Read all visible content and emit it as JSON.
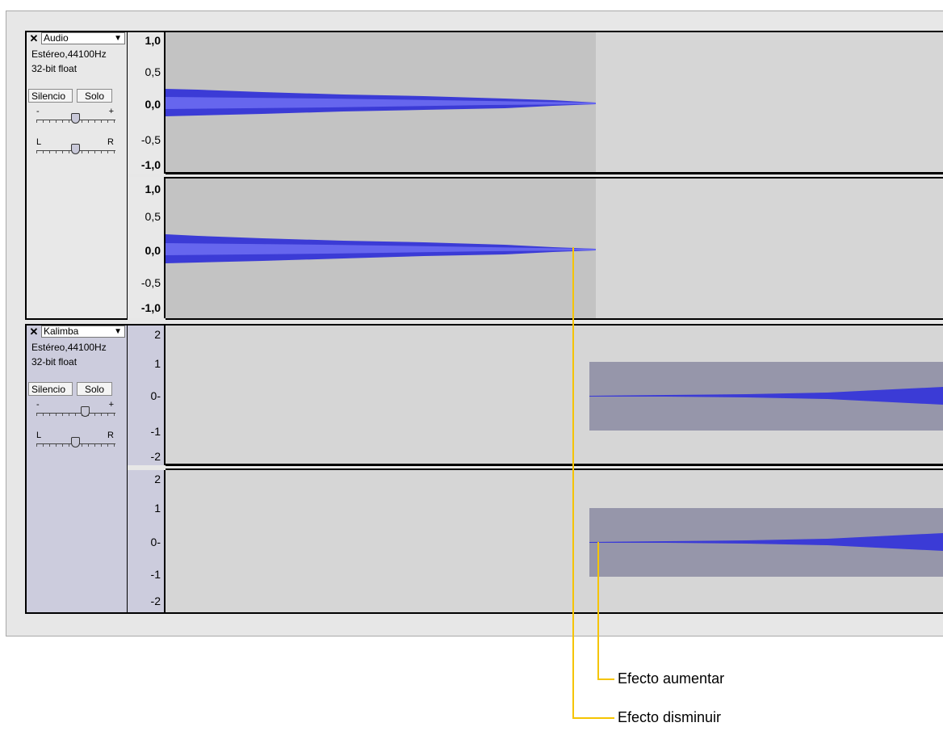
{
  "tracks": [
    {
      "name": "Audio",
      "info_line1": "Estéreo,44100Hz",
      "info_line2": "32-bit float",
      "mute_label": "Silencio",
      "solo_label": "Solo",
      "gain_minus": "-",
      "gain_plus": "+",
      "pan_left": "L",
      "pan_right": "R",
      "scale_top": [
        "1,0",
        "0,5",
        "0,0",
        "-0,5",
        "-1,0"
      ],
      "scale_bottom": [
        "1,0",
        "0,5",
        "0,0",
        "-0,5",
        "-1,0"
      ]
    },
    {
      "name": "Kalimba",
      "info_line1": "Estéreo,44100Hz",
      "info_line2": "32-bit float",
      "mute_label": "Silencio",
      "solo_label": "Solo",
      "gain_minus": "-",
      "gain_plus": "+",
      "pan_left": "L",
      "pan_right": "R",
      "scale_top": [
        "2",
        "1",
        "0-",
        "-1",
        "-2"
      ],
      "scale_bottom": [
        "2",
        "1",
        "0-",
        "-1",
        "-2"
      ]
    }
  ],
  "annotations": {
    "fade_in_label": "Efecto aumentar",
    "fade_out_label": "Efecto disminuir"
  },
  "colors": {
    "waveform": "#3b3bd6",
    "audio_clip_bg": "#c3c3c3",
    "empty_bg": "#d6d6d6",
    "kalimba_clip_bg": "#9696aa",
    "callout_line": "#f5c400"
  },
  "icons": {
    "close": "close-icon",
    "dropdown": "chevron-down-icon"
  }
}
